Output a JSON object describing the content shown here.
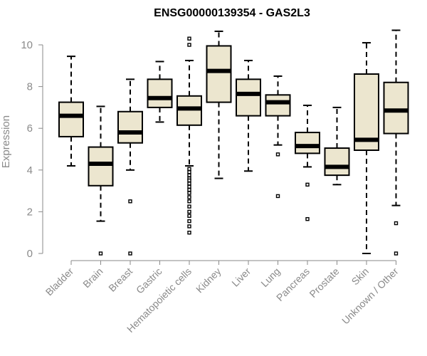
{
  "chart_data": {
    "type": "box",
    "title": "ENSG00000139354 - GAS2L3",
    "xlabel": "",
    "ylabel": "Expression",
    "ylim": [
      0,
      10
    ],
    "yticks": [
      0,
      2,
      4,
      6,
      8,
      10
    ],
    "grid": false,
    "legend": "none",
    "box_fill": "#ece6cf",
    "categories": [
      "Bladder",
      "Brain",
      "Breast",
      "Gastric",
      "Hematopoietic cells",
      "Kidney",
      "Liver",
      "Lung",
      "Pancreas",
      "Prostate",
      "Skin",
      "Unknown / Other"
    ],
    "boxes": [
      {
        "category": "Bladder",
        "whisker_low": 4.2,
        "q1": 5.6,
        "median": 6.6,
        "q3": 7.25,
        "whisker_high": 9.45,
        "outliers": []
      },
      {
        "category": "Brain",
        "whisker_low": 1.55,
        "q1": 3.25,
        "median": 4.3,
        "q3": 5.1,
        "whisker_high": 7.05,
        "outliers": [
          0.0
        ]
      },
      {
        "category": "Breast",
        "whisker_low": 4.0,
        "q1": 5.3,
        "median": 5.8,
        "q3": 6.8,
        "whisker_high": 8.35,
        "outliers": [
          2.5,
          0.0
        ]
      },
      {
        "category": "Gastric",
        "whisker_low": 6.3,
        "q1": 7.0,
        "median": 7.45,
        "q3": 8.35,
        "whisker_high": 9.2,
        "outliers": []
      },
      {
        "category": "Hematopoietic cells",
        "whisker_low": 4.2,
        "q1": 6.15,
        "median": 6.95,
        "q3": 7.55,
        "whisker_high": 9.25,
        "outliers": [
          10.3,
          10.0,
          4.05,
          3.9,
          3.75,
          3.6,
          3.5,
          3.35,
          3.2,
          3.05,
          2.9,
          2.7,
          2.5,
          2.25,
          2.0,
          1.8,
          1.55,
          1.3,
          1.0
        ]
      },
      {
        "category": "Kidney",
        "whisker_low": 3.6,
        "q1": 7.25,
        "median": 8.75,
        "q3": 9.95,
        "whisker_high": 10.65,
        "outliers": []
      },
      {
        "category": "Liver",
        "whisker_low": 3.95,
        "q1": 6.6,
        "median": 7.65,
        "q3": 8.35,
        "whisker_high": 9.25,
        "outliers": []
      },
      {
        "category": "Lung",
        "whisker_low": 5.2,
        "q1": 6.6,
        "median": 7.25,
        "q3": 7.6,
        "whisker_high": 8.5,
        "outliers": [
          4.75,
          2.75
        ]
      },
      {
        "category": "Pancreas",
        "whisker_low": 4.15,
        "q1": 4.8,
        "median": 5.15,
        "q3": 5.8,
        "whisker_high": 7.1,
        "outliers": [
          3.3,
          1.65
        ]
      },
      {
        "category": "Prostate",
        "whisker_low": 3.3,
        "q1": 3.75,
        "median": 4.15,
        "q3": 5.05,
        "whisker_high": 7.0,
        "outliers": []
      },
      {
        "category": "Skin",
        "whisker_low": 0.0,
        "q1": 4.95,
        "median": 5.45,
        "q3": 8.6,
        "whisker_high": 10.1,
        "outliers": []
      },
      {
        "category": "Unknown / Other",
        "whisker_low": 2.3,
        "q1": 5.75,
        "median": 6.85,
        "q3": 8.2,
        "whisker_high": 10.7,
        "outliers": [
          1.45,
          0.0
        ]
      }
    ]
  }
}
